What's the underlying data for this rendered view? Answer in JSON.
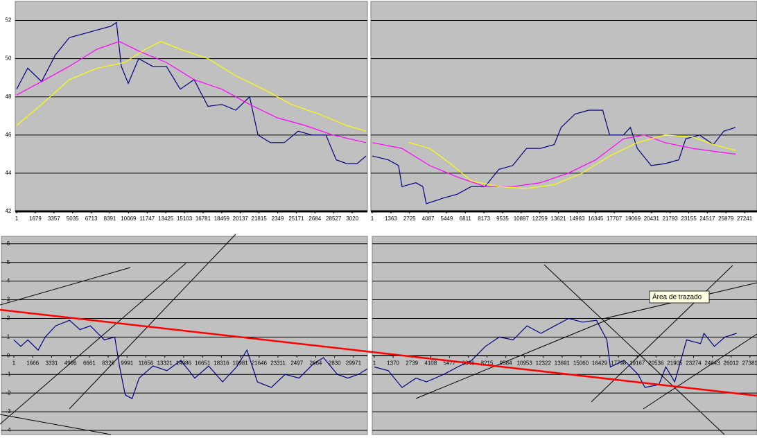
{
  "chart_data": [
    {
      "type": "line",
      "xlim": [
        0,
        31570
      ],
      "ylim": [
        42,
        53
      ],
      "grid": true,
      "show_y_labels": true,
      "yticks": [
        42,
        44,
        46,
        48,
        50,
        52
      ],
      "xticks": [
        1,
        1679,
        3357,
        5035,
        6713,
        8391,
        10069,
        11747,
        13425,
        15103,
        16781,
        18459,
        20137,
        21815,
        {
          "value": 23493,
          "label": "2349"
        },
        25171,
        {
          "value": 26849,
          "label": "2684"
        },
        28527,
        {
          "value": 30205,
          "label": "3020"
        }
      ],
      "series": [
        {
          "color": "#000080",
          "x": [
            1,
            999,
            2247,
            3495,
            4743,
            5991,
            7239,
            8487,
            8987,
            9423,
            10047,
            10983,
            12231,
            13479,
            14727,
            15975,
            17223,
            18471,
            19719,
            20967,
            21716,
            22839,
            24087,
            25335,
            26583,
            27831,
            28767,
            29703,
            30639,
            31450
          ],
          "values": [
            48.4,
            49.5,
            48.8,
            50.2,
            51.1,
            51.3,
            51.5,
            51.7,
            51.9,
            49.6,
            48.7,
            50.0,
            49.6,
            49.6,
            48.4,
            48.9,
            47.5,
            47.6,
            47.3,
            48.0,
            46.0,
            45.6,
            45.6,
            46.2,
            46.0,
            46.0,
            44.7,
            44.5,
            44.5,
            44.9
          ]
        },
        {
          "color": "#ff00ff",
          "x": [
            1,
            2247,
            4743,
            7239,
            9235,
            10983,
            13479,
            15975,
            18471,
            20967,
            23463,
            25959,
            28455,
            31450
          ],
          "values": [
            48.1,
            48.8,
            49.6,
            50.5,
            50.9,
            50.4,
            49.8,
            48.9,
            48.4,
            47.6,
            46.9,
            46.5,
            46.0,
            45.6
          ]
        },
        {
          "color": "#ffff00",
          "x": [
            1,
            2247,
            4743,
            7239,
            9735,
            11607,
            12980,
            14727,
            17223,
            19719,
            22215,
            24711,
            27207,
            29703,
            31450
          ],
          "values": [
            46.5,
            47.6,
            48.9,
            49.5,
            49.8,
            50.5,
            50.9,
            50.5,
            50.0,
            49.1,
            48.4,
            47.6,
            47.1,
            46.5,
            46.2
          ]
        }
      ]
    },
    {
      "type": "line",
      "xlim": [
        0,
        28150
      ],
      "ylim": [
        42,
        53
      ],
      "grid": true,
      "show_y_labels": false,
      "yticks": [
        42,
        44,
        46,
        48,
        50,
        52
      ],
      "xticks": [
        1,
        1363,
        2725,
        4087,
        5449,
        6811,
        8173,
        9535,
        10897,
        12259,
        13621,
        14983,
        16345,
        17707,
        19069,
        20431,
        21793,
        23155,
        24517,
        25879,
        27241
      ],
      "series": [
        {
          "color": "#000080",
          "x": [
            1,
            1165,
            1924,
            2177,
            3190,
            3696,
            3949,
            5215,
            6227,
            7240,
            8253,
            9265,
            10278,
            11290,
            12303,
            13316,
            13822,
            14835,
            15847,
            16860,
            17366,
            18379,
            18885,
            19391,
            20404,
            21416,
            22429,
            22935,
            23948,
            24960,
            25720,
            26581
          ],
          "values": [
            44.9,
            44.7,
            44.4,
            43.3,
            43.5,
            43.3,
            42.4,
            42.7,
            42.9,
            43.3,
            43.3,
            44.2,
            44.4,
            45.3,
            45.3,
            45.5,
            46.4,
            47.1,
            47.3,
            47.3,
            46.0,
            46.0,
            46.4,
            45.3,
            44.4,
            44.5,
            44.7,
            45.8,
            46.0,
            45.5,
            46.2,
            46.4
          ]
        },
        {
          "color": "#ff00ff",
          "x": [
            1,
            2177,
            4202,
            6227,
            8253,
            10278,
            12303,
            14328,
            16353,
            18379,
            19898,
            21416,
            23442,
            25467,
            26581
          ],
          "values": [
            45.6,
            45.3,
            44.4,
            43.8,
            43.3,
            43.3,
            43.5,
            44.0,
            44.7,
            45.8,
            46.0,
            45.6,
            45.3,
            45.1,
            45.0
          ]
        },
        {
          "color": "#ffff00",
          "x": [
            2683,
            4202,
            5721,
            7240,
            9265,
            11290,
            13316,
            15341,
            17366,
            19391,
            21416,
            23442,
            24960,
            26581
          ],
          "values": [
            45.6,
            45.3,
            44.5,
            43.6,
            43.3,
            43.2,
            43.4,
            44.0,
            44.9,
            45.6,
            46.0,
            45.9,
            45.5,
            45.2
          ]
        }
      ]
    },
    {
      "type": "line",
      "xlim": [
        0,
        31200
      ],
      "ylim": [
        -4,
        6.4
      ],
      "grid": true,
      "show_y_labels": true,
      "yticks": [
        -4,
        -3,
        -2,
        -1,
        0,
        1,
        2,
        3,
        4,
        5,
        6
      ],
      "xticks": [
        1,
        1666,
        3331,
        4996,
        6661,
        8326,
        9991,
        11656,
        13321,
        14986,
        16651,
        18316,
        19981,
        21646,
        23311,
        {
          "value": 24976,
          "label": "2497"
        },
        {
          "value": 26641,
          "label": "2664"
        },
        {
          "value": 28306,
          "label": "2830"
        },
        29971
      ],
      "series": [
        {
          "color": "#000080",
          "x": [
            1,
            614,
            1228,
            2149,
            2763,
            3684,
            4912,
            5833,
            6754,
            7982,
            8903,
            9333,
            9824,
            10438,
            11052,
            12280,
            13508,
            14736,
            15964,
            17192,
            18420,
            19648,
            20569,
            21490,
            22718,
            23946,
            25174,
            26402,
            27323,
            28551,
            29472,
            30393,
            31191
          ],
          "values": [
            0.85,
            0.5,
            0.85,
            0.3,
            1.0,
            1.6,
            1.9,
            1.4,
            1.6,
            0.85,
            1.0,
            -0.6,
            -2.1,
            -2.3,
            -1.2,
            -0.55,
            -0.8,
            -0.25,
            -1.2,
            -0.55,
            -1.4,
            -0.6,
            0.3,
            -1.4,
            -1.7,
            -1.0,
            -1.2,
            -0.45,
            -0.1,
            -1.0,
            -1.2,
            -1.0,
            -0.7
          ]
        }
      ]
    },
    {
      "type": "line",
      "xlim": [
        0,
        27900
      ],
      "ylim": [
        -4,
        6.4
      ],
      "grid": true,
      "show_y_labels": false,
      "yticks": [
        -4,
        -3,
        -2,
        -1,
        0,
        1,
        2,
        3,
        4,
        5,
        6
      ],
      "xticks": [
        1,
        1370,
        2739,
        4108,
        5477,
        6846,
        8215,
        9584,
        10953,
        12322,
        13691,
        15060,
        16429,
        17798,
        19167,
        20536,
        21905,
        23274,
        24643,
        26012,
        27381
      ],
      "annotation": "Área de trazado",
      "series": [
        {
          "color": "#000080",
          "x": [
            1,
            1012,
            2024,
            3036,
            3795,
            5060,
            6072,
            7084,
            8096,
            9108,
            10120,
            11132,
            12144,
            13156,
            14168,
            15180,
            16192,
            16951,
            17204,
            18216,
            19228,
            19734,
            20746,
            21252,
            21901,
            22770,
            23782,
            24035,
            24794,
            25553,
            26413
          ],
          "values": [
            -0.6,
            -0.8,
            -1.7,
            -1.2,
            -1.4,
            -1.0,
            -0.6,
            -0.25,
            0.5,
            1.0,
            0.85,
            1.6,
            1.2,
            1.6,
            2.0,
            1.8,
            1.9,
            0.85,
            -0.6,
            -0.25,
            -1.0,
            -1.7,
            -1.55,
            -0.6,
            -1.4,
            0.85,
            0.65,
            1.2,
            0.5,
            1.0,
            1.2
          ]
        }
      ]
    }
  ]
}
